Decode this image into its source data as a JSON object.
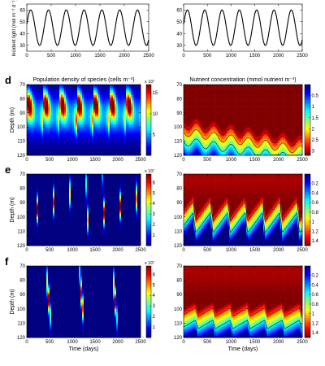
{
  "colors": {
    "colormap_low": "#00008f",
    "colormap_mid": "#80ff80",
    "colormap_high": "#800000",
    "line": "#000000",
    "contour": "#1a1a1a"
  },
  "chart_data": [
    {
      "id": "light-left",
      "type": "line",
      "title": "",
      "xlabel": "",
      "ylabel": "Incident light (mol m⁻² d⁻¹)",
      "xlim": [
        0,
        2500
      ],
      "ylim": [
        25,
        65
      ],
      "xticks": [
        0,
        500,
        1000,
        1500,
        2000,
        2500
      ],
      "yticks": [
        30,
        40,
        50,
        60
      ],
      "series": [
        {
          "mean": 45,
          "amplitude": 15,
          "period_days": 365
        }
      ]
    },
    {
      "id": "light-right",
      "type": "line",
      "title": "",
      "xlabel": "",
      "ylabel": "",
      "xlim": [
        0,
        2500
      ],
      "ylim": [
        25,
        65
      ],
      "xticks": [
        0,
        500,
        1000,
        1500,
        2000,
        2500
      ],
      "yticks": [
        30,
        40,
        50,
        60
      ],
      "series": [
        {
          "mean": 45,
          "amplitude": 15,
          "period_days": 365
        }
      ]
    },
    {
      "id": "d-pop",
      "panel_letter": "d",
      "type": "heatmap",
      "title": "Population density of species (cells m⁻³)",
      "xlabel": "",
      "ylabel": "Depth (m)",
      "xlim": [
        0,
        2500
      ],
      "ylim": [
        70,
        120
      ],
      "y_reversed": true,
      "xticks": [
        0,
        500,
        1000,
        1500,
        2000,
        2500
      ],
      "yticks": [
        70,
        80,
        90,
        100,
        110,
        120
      ],
      "colorbar": {
        "ticks": [
          5,
          10,
          15
        ],
        "range": [
          0,
          17
        ],
        "multiplier": "x 10⁷",
        "reversed": false
      },
      "pattern": {
        "kind": "seasonal_bloom",
        "period_days": 365,
        "peak_depth": 82,
        "depth_sd": 9,
        "peak_value": 16
      }
    },
    {
      "id": "d-nut",
      "type": "heatmap",
      "title": "Nutrient concentration (mmol nutrient m⁻³)",
      "xlabel": "",
      "ylabel": "",
      "xlim": [
        0,
        2500
      ],
      "ylim": [
        70,
        120
      ],
      "y_reversed": true,
      "xticks": [
        0,
        500,
        1000,
        1500,
        2000,
        2500
      ],
      "yticks": [
        70,
        80,
        90,
        100,
        110,
        120
      ],
      "colorbar": {
        "ticks": [
          0.5,
          1,
          1.5,
          2,
          2.5,
          3
        ],
        "range": [
          0,
          3.2
        ],
        "multiplier": "",
        "reversed": true
      },
      "pattern": {
        "kind": "nutricline_drift",
        "period_days": 365,
        "top_depth_start": 95,
        "top_depth_end": 108,
        "amplitude": 3,
        "gradient_per_m": 0.12
      }
    },
    {
      "id": "e-pop",
      "panel_letter": "e",
      "type": "heatmap",
      "title": "",
      "xlabel": "",
      "ylabel": "Depth (m)",
      "xlim": [
        0,
        2500
      ],
      "ylim": [
        70,
        120
      ],
      "y_reversed": true,
      "xticks": [
        0,
        500,
        1000,
        1500,
        2000,
        2500
      ],
      "yticks": [
        70,
        80,
        90,
        100,
        110,
        120
      ],
      "colorbar": {
        "ticks": [
          1,
          2,
          3,
          4,
          5,
          6
        ],
        "range": [
          0,
          6.8
        ],
        "multiplier": "x 10⁷",
        "reversed": false
      },
      "pattern": {
        "kind": "descending_streaks",
        "period_days": 365,
        "phase_days": 200,
        "peak_depth": 98,
        "peak_value": 6.5
      }
    },
    {
      "id": "e-nut",
      "type": "heatmap",
      "title": "",
      "xlabel": "",
      "ylabel": "",
      "xlim": [
        0,
        2500
      ],
      "ylim": [
        70,
        120
      ],
      "y_reversed": true,
      "xticks": [
        0,
        500,
        1000,
        1500,
        2000,
        2500
      ],
      "yticks": [
        70,
        80,
        90,
        100,
        110,
        120
      ],
      "colorbar": {
        "ticks": [
          0.2,
          0.4,
          0.6,
          0.8,
          1,
          1.2,
          1.4
        ],
        "range": [
          0,
          1.5
        ],
        "multiplier": "",
        "reversed": true
      },
      "pattern": {
        "kind": "sawtooth_nutricline",
        "period_days": 365,
        "phase_days": 200,
        "top_depth": 92,
        "amplitude": 7,
        "gradient_per_m": 0.075
      }
    },
    {
      "id": "f-pop",
      "panel_letter": "f",
      "type": "heatmap",
      "title": "",
      "xlabel": "Time (days)",
      "ylabel": "Depth (m)",
      "xlim": [
        0,
        2500
      ],
      "ylim": [
        70,
        120
      ],
      "y_reversed": true,
      "xticks": [
        0,
        500,
        1000,
        1500,
        2000,
        2500
      ],
      "yticks": [
        70,
        80,
        90,
        100,
        110,
        120
      ],
      "colorbar": {
        "ticks": [
          1,
          2,
          3,
          4,
          5,
          6
        ],
        "range": [
          0,
          6.8
        ],
        "multiplier": "x 10⁷",
        "reversed": false
      },
      "pattern": {
        "kind": "descending_streaks",
        "period_days": 730,
        "phase_days": 420,
        "peak_depth": 96,
        "peak_value": 6.5
      }
    },
    {
      "id": "f-nut",
      "type": "heatmap",
      "title": "",
      "xlabel": "Time (days)",
      "ylabel": "",
      "xlim": [
        0,
        2500
      ],
      "ylim": [
        70,
        120
      ],
      "y_reversed": true,
      "xticks": [
        0,
        500,
        1000,
        1500,
        2000,
        2500
      ],
      "yticks": [
        70,
        80,
        90,
        100,
        110,
        120
      ],
      "colorbar": {
        "ticks": [
          0.2,
          0.4,
          0.6,
          0.8,
          1,
          1.2,
          1.4
        ],
        "range": [
          0,
          1.5
        ],
        "multiplier": "",
        "reversed": true
      },
      "pattern": {
        "kind": "sawtooth_nutricline",
        "period_days": 365,
        "phase_days": 250,
        "top_depth": 98,
        "amplitude": 3,
        "gradient_per_m": 0.07
      }
    }
  ]
}
